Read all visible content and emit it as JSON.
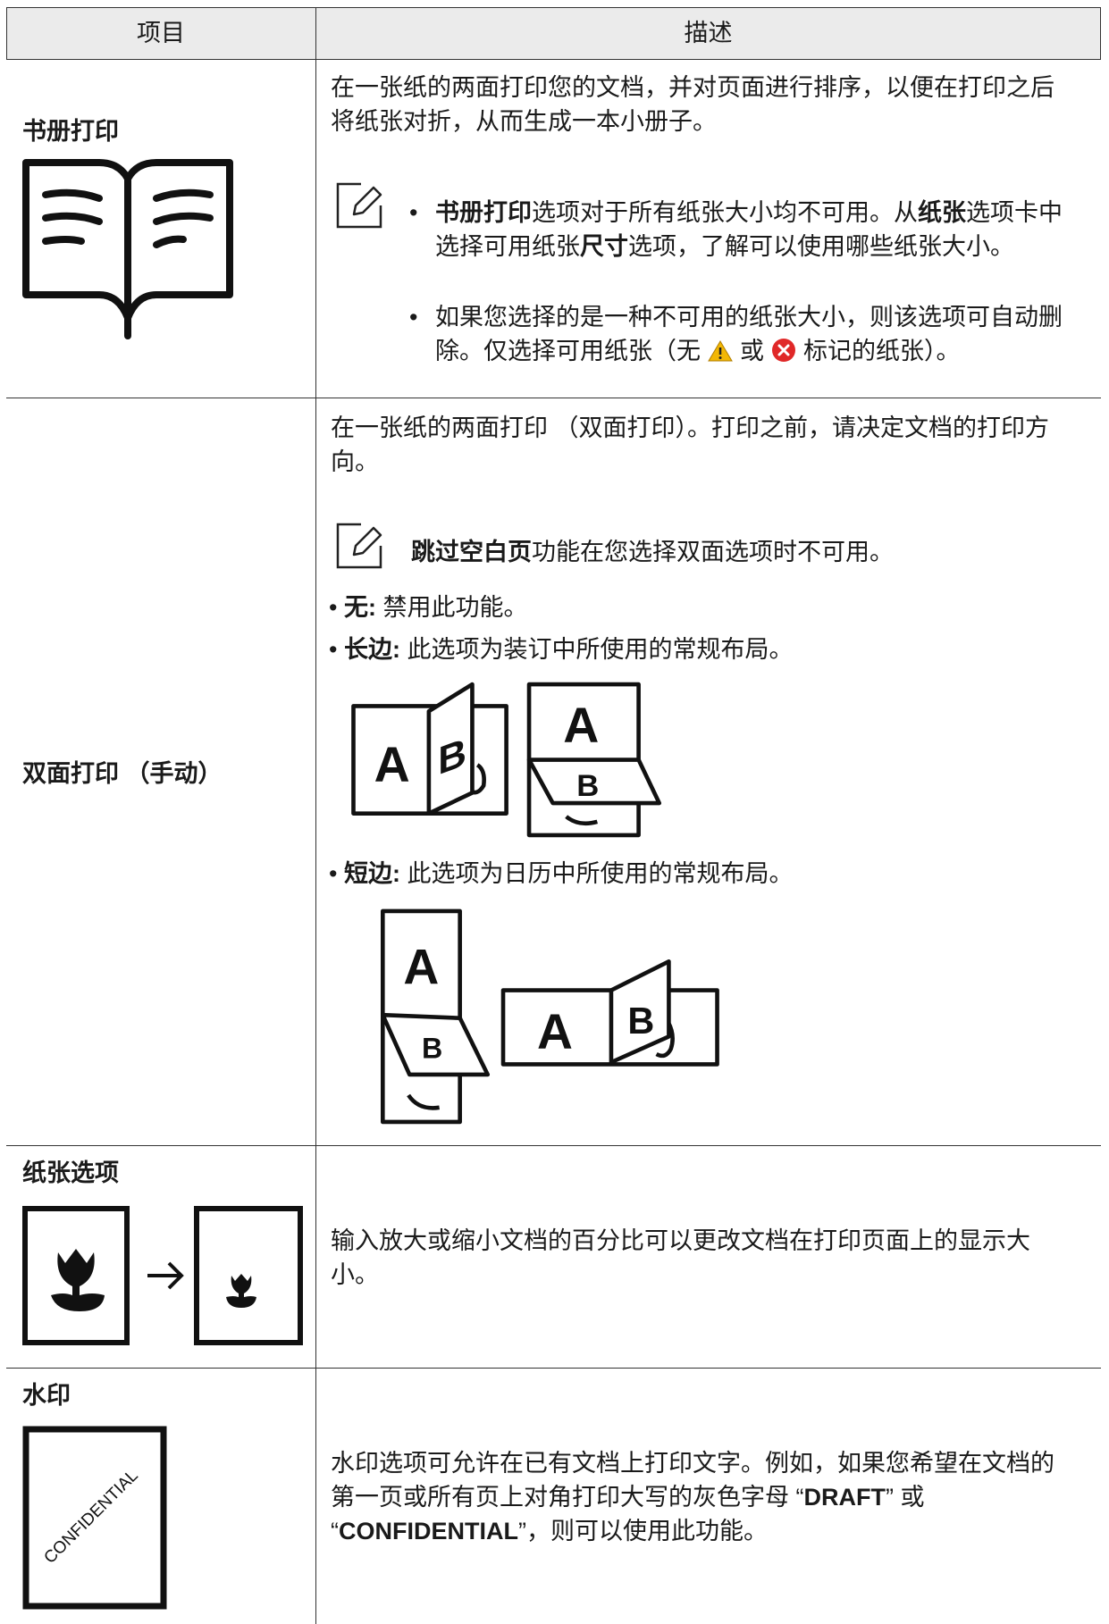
{
  "table": {
    "header": {
      "item": "项目",
      "description": "描述"
    },
    "rows": [
      {
        "item": "书册打印",
        "text": "在一张纸的两面打印您的文档，并对页面进行排序，以便在打印之后将纸张对折，从而生成一本小册子。",
        "notes": [
          [
            "书册打印",
            "选项对于所有纸张大小均不可用。从",
            "纸张",
            "选项卡中选择可用纸张",
            "尺寸",
            "选项，了解可以使用哪些纸张大小。"
          ],
          [
            "如果您选择的是一种不可用的纸张大小，则该选项可自动删除。仅选择可用纸张（无",
            "或",
            "标记的纸张）。"
          ]
        ]
      },
      {
        "item": "双面打印 （手动）",
        "text": "在一张纸的两面打印 （双面打印）。打印之前，请决定文档的打印方向。",
        "note": [
          "跳过空白页",
          "功能在您选择双面选项时不可用。"
        ],
        "options": [
          {
            "name": "无:",
            "text": "禁用此功能。"
          },
          {
            "name": "长边:",
            "text": "此选项为装订中所使用的常规布局。"
          },
          {
            "name": "短边:",
            "text": "此选项为日历中所使用的常规布局。"
          }
        ]
      },
      {
        "item": "纸张选项",
        "text": "输入放大或缩小文档的百分比可以更改文档在打印页面上的显示大小。"
      },
      {
        "item": "水印",
        "image_text": "CONFIDENTIAL",
        "text": [
          "水印选项可允许在已有文档上打印文字。例如，如果您希望在文档的第一页或所有页上对角打印大写的灰色字母 “",
          "DRAFT",
          "” 或 “",
          "CONFIDENTIAL",
          "”，则可以使用此功能。"
        ]
      }
    ]
  }
}
